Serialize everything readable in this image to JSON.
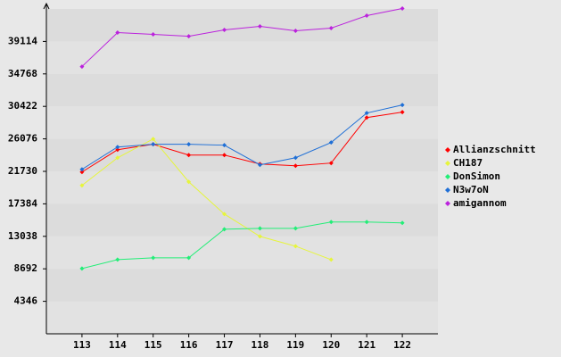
{
  "chart_data": {
    "type": "line",
    "x": [
      113,
      114,
      115,
      116,
      117,
      118,
      119,
      120,
      121,
      122
    ],
    "xlim": [
      112,
      123
    ],
    "xticks": [
      113,
      114,
      115,
      116,
      117,
      118,
      119,
      120,
      121,
      122
    ],
    "ylim": [
      0,
      43460
    ],
    "yticks": [
      4346,
      8692,
      13038,
      17384,
      21730,
      26076,
      30422,
      34768,
      39114
    ],
    "grid": true,
    "legend": "right",
    "series": [
      {
        "name": "Allianzschnitt",
        "color": "#ff0000",
        "values": [
          21640,
          24630,
          25350,
          23910,
          23910,
          22720,
          22480,
          22840,
          28930,
          29650
        ]
      },
      {
        "name": "CH187",
        "color": "#e6f53c",
        "values": [
          19850,
          23550,
          26060,
          20330,
          16020,
          13030,
          11720,
          9920,
          null,
          null
        ]
      },
      {
        "name": "DonSimon",
        "color": "#22ee77",
        "values": [
          8730,
          9920,
          10160,
          10160,
          13990,
          14110,
          14110,
          14950,
          14950,
          14830
        ]
      },
      {
        "name": "N3w7oN",
        "color": "#1f6fd6",
        "values": [
          22000,
          24990,
          25350,
          25350,
          25230,
          22600,
          23550,
          25590,
          29530,
          30610
        ]
      },
      {
        "name": "amigannom",
        "color": "#bb22dd",
        "values": [
          35750,
          40290,
          40050,
          39810,
          40650,
          41130,
          40530,
          40890,
          42560,
          43520
        ]
      }
    ]
  }
}
